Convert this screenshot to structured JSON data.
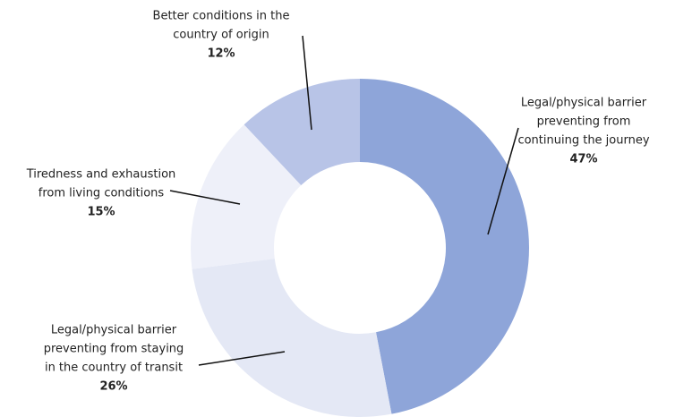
{
  "chart_data": {
    "type": "donut",
    "categories": [
      [
        "Legal/physical barrier",
        "preventing from",
        "continuing the journey"
      ],
      [
        "Legal/physical barrier",
        "preventing from staying",
        "in the country of transit"
      ],
      [
        "Tiredness and exhaustion",
        "from living conditions"
      ],
      [
        "Better conditions in the",
        "country of origin"
      ]
    ],
    "values": [
      47,
      26,
      15,
      12
    ],
    "value_labels": [
      "47%",
      "26%",
      "15%",
      "12%"
    ],
    "colors": [
      "#8ea5d9",
      "#e4e8f5",
      "#eef0f9",
      "#b8c4e7"
    ]
  }
}
